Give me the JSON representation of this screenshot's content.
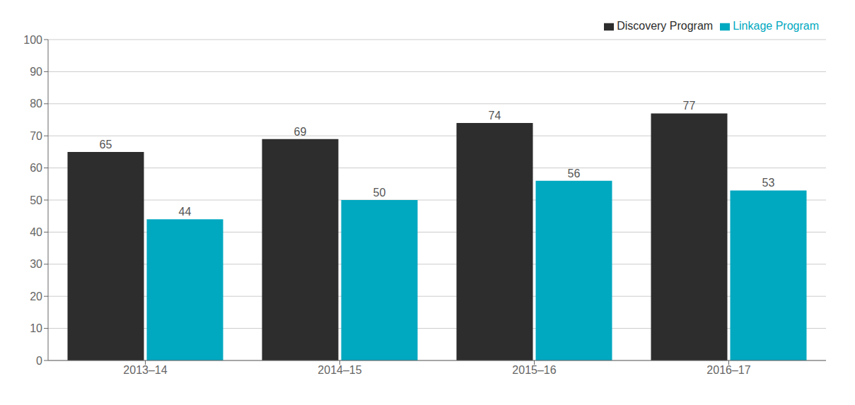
{
  "chart_data": {
    "type": "bar",
    "categories": [
      "2013–14",
      "2014–15",
      "2015–16",
      "2016–17"
    ],
    "series": [
      {
        "name": "Discovery Program",
        "color": "#2d2d2d",
        "values": [
          65,
          69,
          74,
          77
        ]
      },
      {
        "name": "Linkage Program",
        "color": "#00a8c0",
        "values": [
          44,
          50,
          56,
          53
        ]
      }
    ],
    "ylim": [
      0,
      100
    ],
    "yticks": [
      0,
      10,
      20,
      30,
      40,
      50,
      60,
      70,
      80,
      90,
      100
    ],
    "grid": true,
    "legend": "upper right",
    "data_labels": true
  }
}
